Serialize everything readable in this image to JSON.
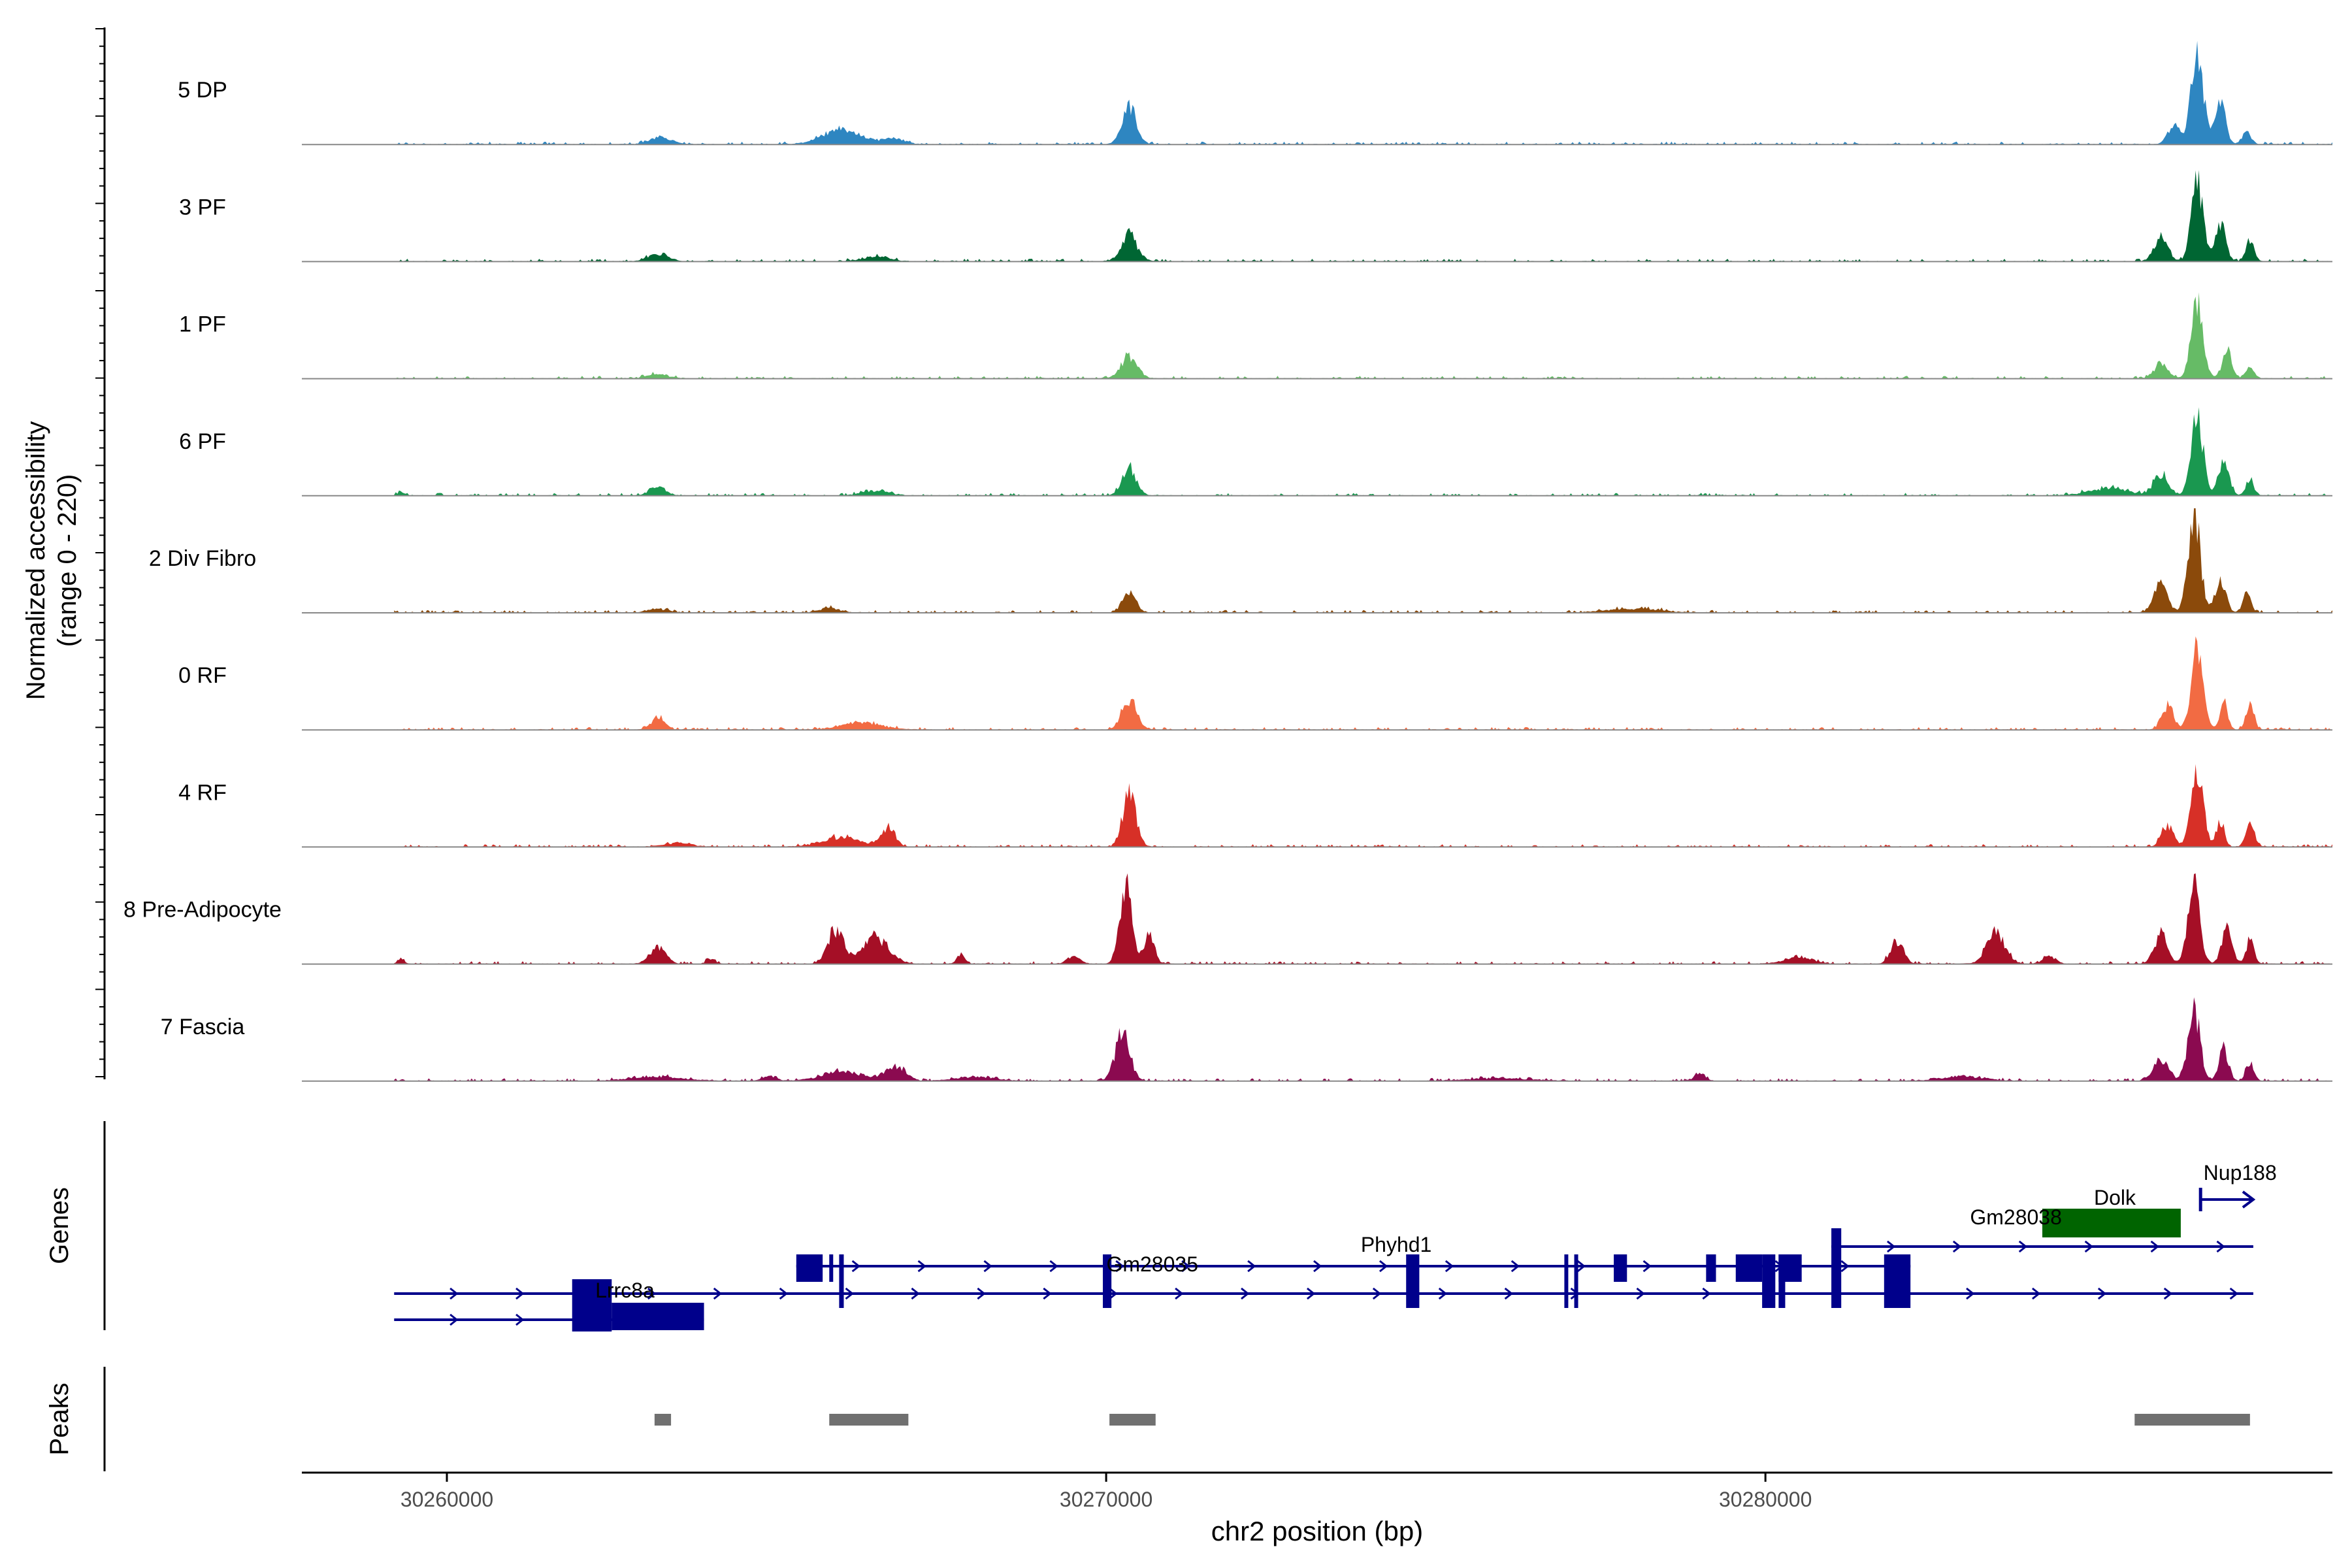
{
  "chart_data": {
    "type": "area",
    "title": "",
    "ylabel_line1": "Normalized accessibility",
    "ylabel_line2": "(range 0 - 220)",
    "xlabel": "chr2 position (bp)",
    "xlim": [
      30257800,
      30288600
    ],
    "ylim": [
      0,
      220
    ],
    "x_ticks": [
      30260000,
      30270000,
      30280000
    ],
    "x_tick_labels": [
      "30260000",
      "30270000",
      "30280000"
    ],
    "region": [
      30259200,
      30288600
    ],
    "grid": false,
    "legend": "none",
    "tracks": [
      {
        "name": "5 DP",
        "color": "#2E86C1",
        "peaks": [
          [
            30263250,
            15,
            160
          ],
          [
            30266000,
            30,
            300
          ],
          [
            30266800,
            12,
            150
          ],
          [
            30270350,
            75,
            110
          ],
          [
            30286550,
            195,
            90
          ],
          [
            30286900,
            85,
            80
          ],
          [
            30286200,
            45,
            90
          ],
          [
            30287300,
            25,
            70
          ]
        ]
      },
      {
        "name": "3 PF",
        "color": "#006633",
        "peaks": [
          [
            30263200,
            15,
            150
          ],
          [
            30266500,
            10,
            200
          ],
          [
            30270350,
            55,
            120
          ],
          [
            30286550,
            160,
            90
          ],
          [
            30286000,
            50,
            100
          ],
          [
            30286900,
            80,
            80
          ],
          [
            30287350,
            45,
            60
          ]
        ]
      },
      {
        "name": "1 PF",
        "color": "#66BB66",
        "peaks": [
          [
            30263200,
            10,
            150
          ],
          [
            30270350,
            45,
            120
          ],
          [
            30286550,
            155,
            90
          ],
          [
            30286000,
            30,
            100
          ],
          [
            30287000,
            60,
            70
          ],
          [
            30287350,
            30,
            60
          ]
        ]
      },
      {
        "name": "6 PF",
        "color": "#1A9850",
        "peaks": [
          [
            30259300,
            8,
            50
          ],
          [
            30263200,
            20,
            120
          ],
          [
            30266500,
            10,
            200
          ],
          [
            30270350,
            55,
            110
          ],
          [
            30285200,
            15,
            300
          ],
          [
            30286550,
            160,
            90
          ],
          [
            30286000,
            45,
            110
          ],
          [
            30286950,
            70,
            80
          ],
          [
            30287350,
            35,
            60
          ]
        ]
      },
      {
        "name": "2 Div Fibro",
        "color": "#8B4A0B",
        "peaks": [
          [
            30263200,
            8,
            150
          ],
          [
            30265800,
            10,
            150
          ],
          [
            30270350,
            40,
            100
          ],
          [
            30278000,
            8,
            400
          ],
          [
            30286500,
            215,
            90
          ],
          [
            30286000,
            60,
            100
          ],
          [
            30286900,
            70,
            80
          ],
          [
            30287300,
            40,
            60
          ]
        ]
      },
      {
        "name": "0 RF",
        "color": "#F26B43",
        "peaks": [
          [
            30263200,
            25,
            100
          ],
          [
            30266300,
            15,
            300
          ],
          [
            30270350,
            65,
            110
          ],
          [
            30286550,
            175,
            90
          ],
          [
            30286100,
            50,
            90
          ],
          [
            30286950,
            55,
            60
          ],
          [
            30287350,
            55,
            60
          ]
        ]
      },
      {
        "name": "4 RF",
        "color": "#D73027",
        "peaks": [
          [
            30263500,
            8,
            200
          ],
          [
            30266000,
            20,
            300
          ],
          [
            30266700,
            40,
            100
          ],
          [
            30270350,
            110,
            100
          ],
          [
            30286550,
            165,
            90
          ],
          [
            30286100,
            45,
            90
          ],
          [
            30286900,
            55,
            60
          ],
          [
            30287350,
            65,
            60
          ]
        ]
      },
      {
        "name": "8 Pre-Adipocyte",
        "color": "#A50F26",
        "peaks": [
          [
            30259300,
            12,
            40
          ],
          [
            30263200,
            35,
            120
          ],
          [
            30264000,
            12,
            60
          ],
          [
            30265900,
            70,
            120
          ],
          [
            30266500,
            55,
            200
          ],
          [
            30267800,
            20,
            60
          ],
          [
            30269500,
            15,
            100
          ],
          [
            30270300,
            175,
            90
          ],
          [
            30270650,
            60,
            80
          ],
          [
            30280500,
            15,
            200
          ],
          [
            30282000,
            45,
            100
          ],
          [
            30283500,
            65,
            140
          ],
          [
            30284300,
            15,
            100
          ],
          [
            30286500,
            170,
            90
          ],
          [
            30286000,
            60,
            100
          ],
          [
            30287000,
            70,
            80
          ],
          [
            30287350,
            50,
            60
          ]
        ]
      },
      {
        "name": "7 Fascia",
        "color": "#8B0A50",
        "peaks": [
          [
            30263200,
            8,
            400
          ],
          [
            30264900,
            10,
            100
          ],
          [
            30266000,
            20,
            300
          ],
          [
            30266800,
            30,
            150
          ],
          [
            30268000,
            8,
            300
          ],
          [
            30270250,
            100,
            110
          ],
          [
            30276000,
            5,
            500
          ],
          [
            30279000,
            15,
            80
          ],
          [
            30283000,
            10,
            300
          ],
          [
            30286500,
            150,
            90
          ],
          [
            30286000,
            45,
            110
          ],
          [
            30286950,
            70,
            70
          ],
          [
            30287350,
            40,
            60
          ]
        ]
      }
    ],
    "genes_label": "Genes",
    "peaks_label": "Peaks",
    "gene_color": "#00008B",
    "gene_labels": [
      {
        "name": "Lrrc8a",
        "pos": 30262700
      },
      {
        "name": "Gm28035",
        "pos": 30270700
      },
      {
        "name": "Phyhd1",
        "pos": 30274400
      },
      {
        "name": "Gm28038",
        "pos": 30283800
      },
      {
        "name": "Dolk",
        "pos": 30285300
      },
      {
        "name": "Nup188",
        "pos": 30287200
      }
    ],
    "transcript_lines": [
      {
        "row": "r2",
        "start": 30259200,
        "end": 30287400
      },
      {
        "row": "r3",
        "start": 30259200,
        "end": 30263900
      },
      {
        "row": "r1",
        "start": 30265300,
        "end": 30282200
      },
      {
        "row": "r0",
        "start": 30281000,
        "end": 30287400
      },
      {
        "row": "nup",
        "start": 30286600,
        "end": 30287400
      }
    ],
    "exons": [
      {
        "row": "big",
        "start": 30261900,
        "end": 30262500
      },
      {
        "row": "low",
        "start": 30262500,
        "end": 30263900
      },
      {
        "row": "mid",
        "start": 30265300,
        "end": 30265700
      },
      {
        "row": "mid",
        "start": 30265800,
        "end": 30265850
      },
      {
        "row": "tall",
        "start": 30265950,
        "end": 30266020
      },
      {
        "row": "tall",
        "start": 30269950,
        "end": 30270080
      },
      {
        "row": "tall",
        "start": 30274550,
        "end": 30274750
      },
      {
        "row": "mid",
        "start": 30274600,
        "end": 30274650
      },
      {
        "row": "tall",
        "start": 30276950,
        "end": 30277000
      },
      {
        "row": "tall",
        "start": 30277100,
        "end": 30277150
      },
      {
        "row": "mid",
        "start": 30277700,
        "end": 30277900
      },
      {
        "row": "mid",
        "start": 30279100,
        "end": 30279250
      },
      {
        "row": "mid",
        "start": 30279550,
        "end": 30279950
      },
      {
        "row": "tall",
        "start": 30279950,
        "end": 30280150
      },
      {
        "row": "tall",
        "start": 30280200,
        "end": 30280300
      },
      {
        "row": "mid",
        "start": 30280200,
        "end": 30280550
      },
      {
        "row": "span",
        "start": 30281000,
        "end": 30281150
      },
      {
        "row": "tall",
        "start": 30281800,
        "end": 30282200
      }
    ],
    "dolk_exon": {
      "start": 30284200,
      "end": 30286300
    },
    "peak_regions": [
      [
        30263150,
        30263400
      ],
      [
        30265800,
        30267000
      ],
      [
        30270050,
        30270750
      ],
      [
        30285600,
        30287350
      ]
    ]
  }
}
